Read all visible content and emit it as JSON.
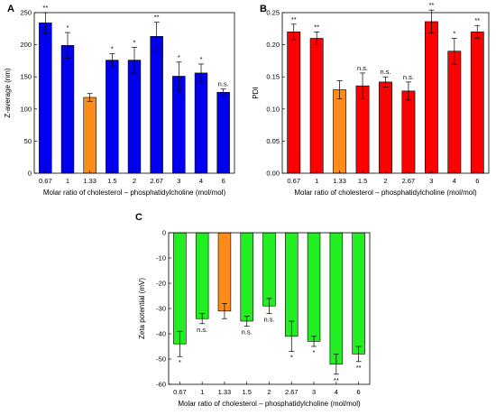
{
  "colors": {
    "blue": "#0000ee",
    "red": "#ff0000",
    "green": "#22ee22",
    "orange": "#ff8c1a",
    "axis": "#000000"
  },
  "chart_data": [
    {
      "type": "bar",
      "panel_label": "A",
      "categories": [
        "0.67",
        "1",
        "1.33",
        "1.5",
        "2",
        "2.67",
        "3",
        "4",
        "6"
      ],
      "values": [
        234,
        199,
        118,
        176,
        176,
        213,
        151,
        156,
        126
      ],
      "errors": [
        16,
        20,
        6,
        10,
        20,
        22,
        22,
        14,
        5
      ],
      "significance": [
        "**",
        "*",
        "",
        "*",
        "*",
        "**",
        "*",
        "*",
        "n.s."
      ],
      "bar_colors": [
        "blue",
        "blue",
        "orange",
        "blue",
        "blue",
        "blue",
        "blue",
        "blue",
        "blue"
      ],
      "xlabel": "Molar ratio of cholesterol – phosphatidylcholine (mol/mol)",
      "ylabel": "Z-average (nm)",
      "ylim": [
        0,
        250
      ],
      "yticks": [
        "0",
        "50",
        "100",
        "150",
        "200",
        "250"
      ],
      "ytick_values": [
        0,
        50,
        100,
        150,
        200,
        250
      ]
    },
    {
      "type": "bar",
      "panel_label": "B",
      "categories": [
        "0.67",
        "1",
        "1.33",
        "1.5",
        "2",
        "2.67",
        "3",
        "4",
        "6"
      ],
      "values": [
        0.22,
        0.21,
        0.13,
        0.136,
        0.142,
        0.128,
        0.236,
        0.19,
        0.22
      ],
      "errors": [
        0.012,
        0.01,
        0.014,
        0.02,
        0.008,
        0.014,
        0.018,
        0.02,
        0.01
      ],
      "significance": [
        "**",
        "**",
        "",
        "n.s.",
        "n.s.",
        "n.s.",
        "**",
        "*",
        "**"
      ],
      "bar_colors": [
        "red",
        "red",
        "orange",
        "red",
        "red",
        "red",
        "red",
        "red",
        "red"
      ],
      "xlabel": "Molar ratio of cholesterol – phosphatidylcholine (mol/mol)",
      "ylabel": "PDI",
      "ylim": [
        0,
        0.25
      ],
      "yticks": [
        "0.00",
        "0.05",
        "0.10",
        "0.15",
        "0.20",
        "0.25"
      ],
      "ytick_values": [
        0,
        0.05,
        0.1,
        0.15,
        0.2,
        0.25
      ]
    },
    {
      "type": "bar",
      "panel_label": "C",
      "categories": [
        "0.67",
        "1",
        "1.33",
        "1.5",
        "2",
        "2.67",
        "3",
        "4",
        "6"
      ],
      "values": [
        -44,
        -34,
        -31,
        -35,
        -29,
        -41,
        -43,
        -52,
        -48
      ],
      "errors": [
        5,
        2,
        3,
        2,
        3,
        6,
        2,
        4,
        3
      ],
      "significance": [
        "*",
        "n.s.",
        "",
        "n.s.",
        "n.s.",
        "*",
        "*",
        "**",
        "**"
      ],
      "bar_colors": [
        "green",
        "green",
        "orange",
        "green",
        "green",
        "green",
        "green",
        "green",
        "green"
      ],
      "xlabel": "Molar ratio of cholesterol – phosphatidylcholine (mol/mol)",
      "ylabel": "Zeta potential (mV)",
      "ylim": [
        -60,
        0
      ],
      "yticks": [
        "-60",
        "-50",
        "-40",
        "-30",
        "-20",
        "-10",
        "0"
      ],
      "ytick_values": [
        -60,
        -50,
        -40,
        -30,
        -20,
        -10,
        0
      ]
    }
  ]
}
